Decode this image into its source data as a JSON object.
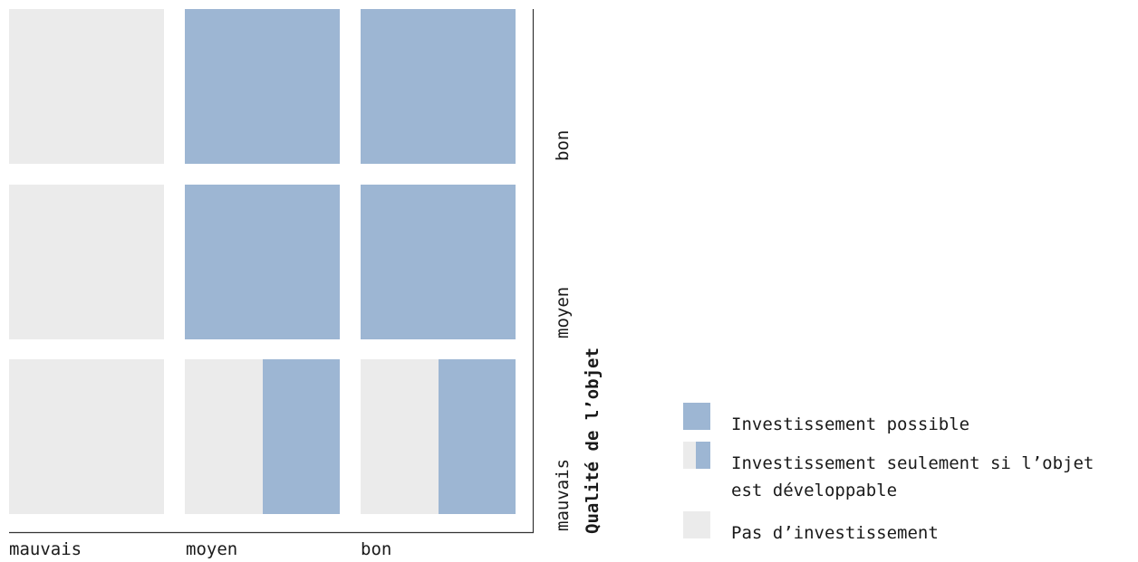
{
  "chart_data": {
    "type": "matrix",
    "y_title": "Qualité de l’objet",
    "x_categories": [
      "mauvais",
      "moyen",
      "bon"
    ],
    "y_categories": [
      "mauvais",
      "moyen",
      "bon"
    ],
    "legend": [
      {
        "key": "possible",
        "label_lines": [
          "Investissement possible"
        ]
      },
      {
        "key": "conditional",
        "label_lines": [
          "Investissement seulement si l’objet",
          "est développable"
        ]
      },
      {
        "key": "none",
        "label_lines": [
          "Pas d’investissement"
        ]
      }
    ],
    "cells": [
      {
        "x": "mauvais",
        "y": "bon",
        "status": "none"
      },
      {
        "x": "moyen",
        "y": "bon",
        "status": "possible"
      },
      {
        "x": "bon",
        "y": "bon",
        "status": "possible"
      },
      {
        "x": "mauvais",
        "y": "moyen",
        "status": "none"
      },
      {
        "x": "moyen",
        "y": "moyen",
        "status": "possible"
      },
      {
        "x": "bon",
        "y": "moyen",
        "status": "possible"
      },
      {
        "x": "mauvais",
        "y": "mauvais",
        "status": "none"
      },
      {
        "x": "moyen",
        "y": "mauvais",
        "status": "conditional"
      },
      {
        "x": "bon",
        "y": "mauvais",
        "status": "conditional"
      }
    ],
    "colors": {
      "possible": "#9db6d3",
      "none": "#ebebeb",
      "axis": "#333333"
    }
  }
}
